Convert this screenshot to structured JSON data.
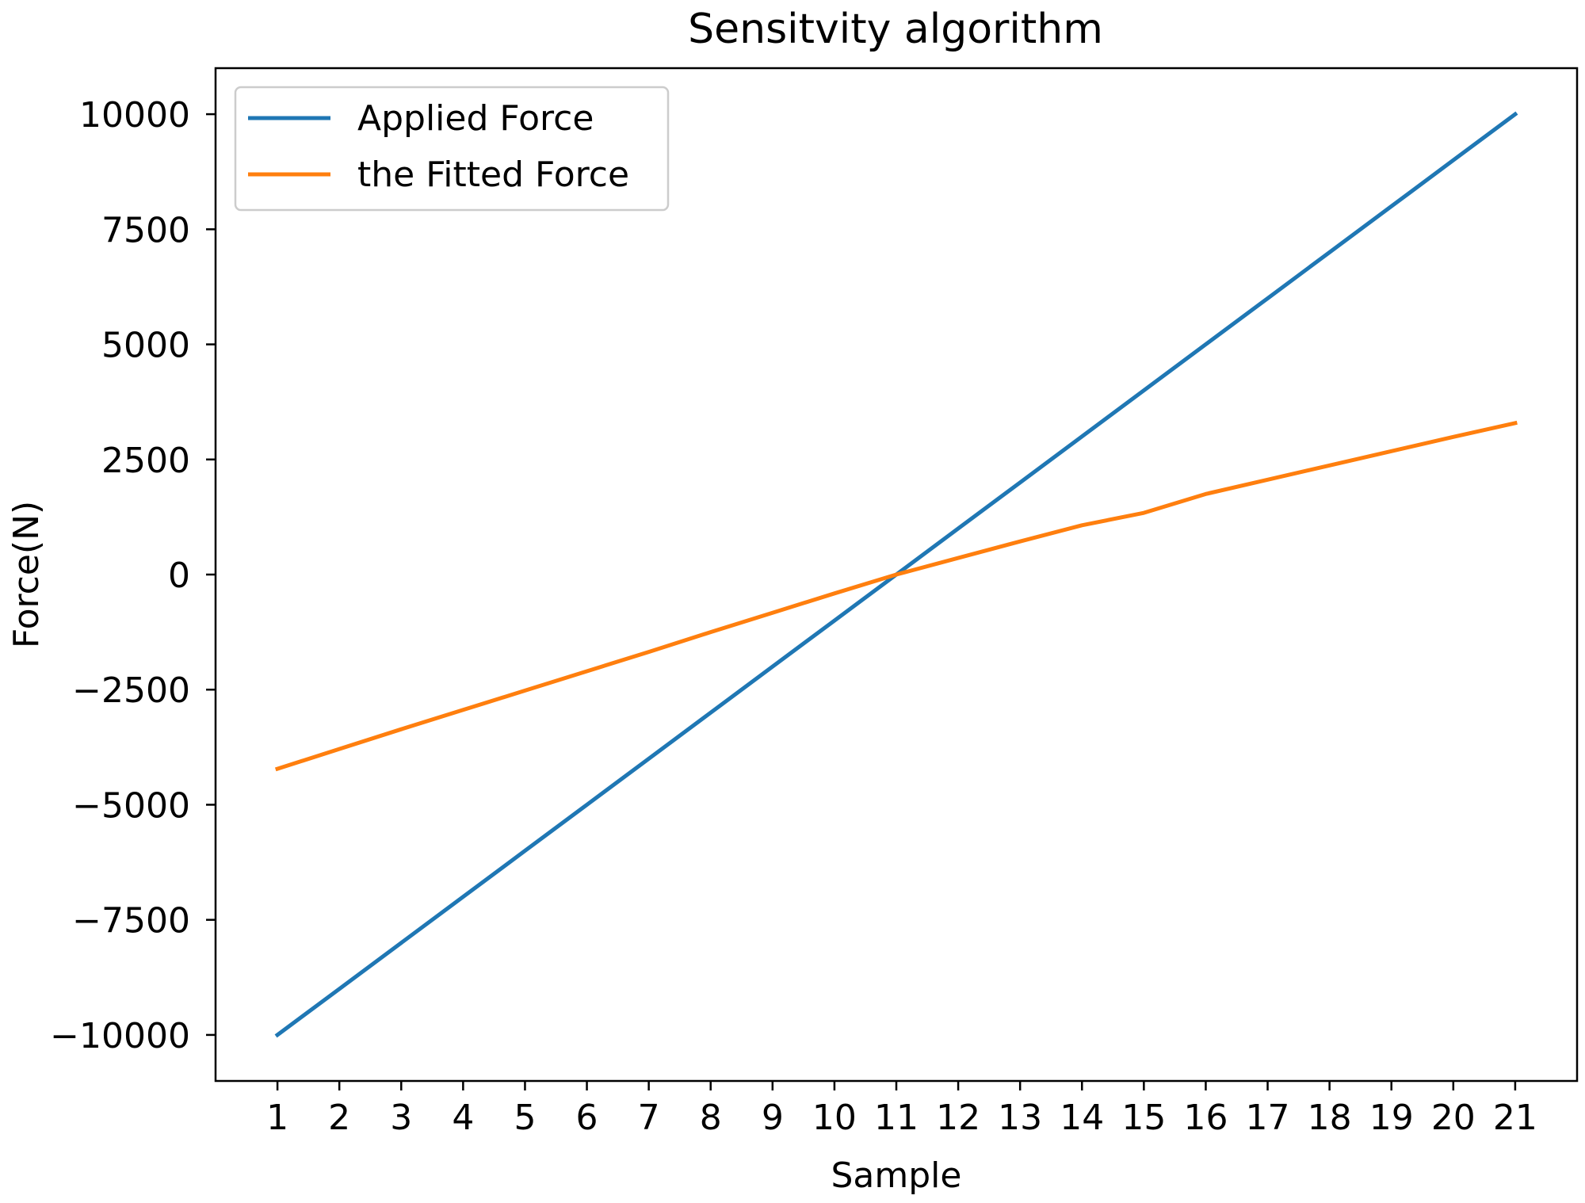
{
  "chart_data": {
    "type": "line",
    "title": "Sensitvity algorithm",
    "xlabel": "Sample",
    "ylabel": "Force(N)",
    "x": [
      1,
      2,
      3,
      4,
      5,
      6,
      7,
      8,
      9,
      10,
      11,
      12,
      13,
      14,
      15,
      16,
      17,
      18,
      19,
      20,
      21
    ],
    "x_ticks": [
      1,
      2,
      3,
      4,
      5,
      6,
      7,
      8,
      9,
      10,
      11,
      12,
      13,
      14,
      15,
      16,
      17,
      18,
      19,
      20,
      21
    ],
    "x_tick_labels": [
      "1",
      "2",
      "3",
      "4",
      "5",
      "6",
      "7",
      "8",
      "9",
      "10",
      "11",
      "12",
      "13",
      "14",
      "15",
      "16",
      "17",
      "18",
      "19",
      "20",
      "21"
    ],
    "y_ticks": [
      -10000,
      -7500,
      -5000,
      -2500,
      0,
      2500,
      5000,
      7500,
      10000
    ],
    "y_tick_labels": [
      "−10000",
      "−7500",
      "−5000",
      "−2500",
      "0",
      "2500",
      "5000",
      "7500",
      "10000"
    ],
    "xlim": [
      0,
      22
    ],
    "ylim": [
      -11000,
      11000
    ],
    "grid": false,
    "legend_position": "top-left",
    "series": [
      {
        "name": "Applied Force",
        "color": "#1f77b4",
        "values": [
          -10000,
          -9000,
          -8000,
          -7000,
          -6000,
          -5000,
          -4000,
          -3000,
          -2000,
          -1000,
          0,
          1000,
          2000,
          3000,
          4000,
          5000,
          6000,
          7000,
          8000,
          9000,
          10000
        ]
      },
      {
        "name": "the Fitted Force",
        "color": "#ff7f0e",
        "values": [
          -4220,
          -3790,
          -3360,
          -2940,
          -2520,
          -2100,
          -1680,
          -1250,
          -830,
          -410,
          0,
          360,
          720,
          1070,
          1340,
          1750,
          2060,
          2370,
          2680,
          2990,
          3290
        ]
      }
    ]
  }
}
